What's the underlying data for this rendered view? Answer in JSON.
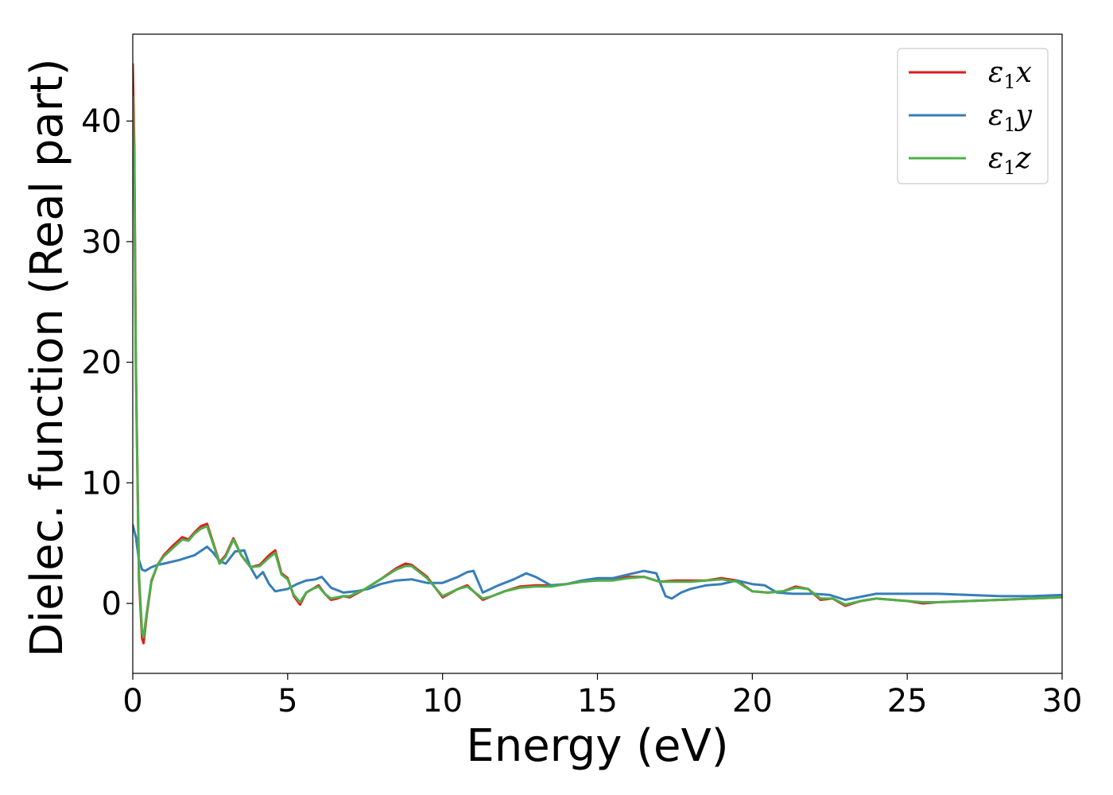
{
  "chart_data": {
    "type": "line",
    "title": "",
    "xlabel": "Energy (eV)",
    "ylabel": "Dielec. function (Real part)",
    "xlim": [
      0,
      30
    ],
    "ylim": [
      -5.8,
      47.2
    ],
    "xticks": [
      0,
      5,
      10,
      15,
      20,
      25,
      30
    ],
    "yticks": [
      0,
      10,
      20,
      30,
      40
    ],
    "grid": false,
    "legend_position": "top-right",
    "series": [
      {
        "name": "ε1x",
        "name_base": "ε",
        "name_sub": "1",
        "name_var": "x",
        "color": "#e41a1c",
        "x": [
          0,
          0.05,
          0.1,
          0.2,
          0.3,
          0.35,
          0.45,
          0.6,
          0.8,
          1.0,
          1.3,
          1.6,
          1.8,
          2.0,
          2.2,
          2.4,
          2.6,
          2.8,
          3.0,
          3.25,
          3.5,
          3.8,
          4.1,
          4.4,
          4.6,
          4.8,
          5.0,
          5.2,
          5.4,
          5.6,
          5.8,
          6.0,
          6.2,
          6.4,
          6.6,
          6.8,
          7.0,
          7.5,
          8.0,
          8.5,
          8.8,
          9.0,
          9.5,
          10.0,
          10.5,
          10.8,
          11.0,
          11.3,
          11.6,
          12.0,
          12.5,
          13.0,
          13.5,
          14.0,
          14.5,
          15.0,
          15.5,
          16.0,
          16.5,
          17.0,
          17.5,
          18.0,
          18.5,
          19.0,
          19.5,
          20.0,
          20.5,
          21.0,
          21.4,
          21.8,
          22.2,
          22.6,
          23.0,
          23.5,
          24.0,
          25.0,
          25.5,
          26.0,
          27.0,
          28.0,
          29.0,
          30.0
        ],
        "y": [
          44.7,
          38.0,
          20.0,
          2.0,
          -2.9,
          -3.3,
          -1.0,
          1.8,
          3.2,
          4.0,
          4.8,
          5.5,
          5.3,
          5.9,
          6.4,
          6.6,
          5.0,
          3.4,
          4.0,
          5.4,
          4.0,
          3.0,
          3.2,
          4.0,
          4.4,
          2.5,
          2.1,
          0.6,
          -0.1,
          0.9,
          1.2,
          1.5,
          0.8,
          0.3,
          0.4,
          0.6,
          0.5,
          1.2,
          2.0,
          2.9,
          3.3,
          3.2,
          2.2,
          0.5,
          1.2,
          1.5,
          1.0,
          0.3,
          0.6,
          1.0,
          1.4,
          1.5,
          1.5,
          1.6,
          1.8,
          2.0,
          2.0,
          2.2,
          2.2,
          1.8,
          1.9,
          1.9,
          1.9,
          2.1,
          1.9,
          1.0,
          0.9,
          1.0,
          1.4,
          1.2,
          0.3,
          0.4,
          -0.2,
          0.2,
          0.4,
          0.2,
          0.0,
          0.1,
          0.2,
          0.3,
          0.4,
          0.5
        ]
      },
      {
        "name": "ε1y",
        "name_base": "ε",
        "name_sub": "1",
        "name_var": "y",
        "color": "#377eb8",
        "x": [
          0,
          0.1,
          0.2,
          0.3,
          0.4,
          0.6,
          0.8,
          1.0,
          1.5,
          2.0,
          2.4,
          2.6,
          2.8,
          3.0,
          3.3,
          3.6,
          3.8,
          4.0,
          4.2,
          4.4,
          4.6,
          5.0,
          5.3,
          5.6,
          5.9,
          6.1,
          6.4,
          6.8,
          7.2,
          7.6,
          8.0,
          8.5,
          9.0,
          9.5,
          10.0,
          10.5,
          10.8,
          11.0,
          11.3,
          11.8,
          12.3,
          12.7,
          13.0,
          13.5,
          14.0,
          14.5,
          15.0,
          15.5,
          16.0,
          16.5,
          16.9,
          17.2,
          17.4,
          17.7,
          18.0,
          18.5,
          19.0,
          19.5,
          20.0,
          20.4,
          20.8,
          21.3,
          22.0,
          22.5,
          23.0,
          24.0,
          25.0,
          26.0,
          27.0,
          28.0,
          29.0,
          30.0
        ],
        "y": [
          6.5,
          5.5,
          3.6,
          2.8,
          2.7,
          3.0,
          3.2,
          3.3,
          3.6,
          4.0,
          4.7,
          4.2,
          3.5,
          3.3,
          4.3,
          4.4,
          3.0,
          2.1,
          2.6,
          1.6,
          1.0,
          1.2,
          1.6,
          1.9,
          2.0,
          2.2,
          1.3,
          0.9,
          1.0,
          1.2,
          1.6,
          1.9,
          2.0,
          1.7,
          1.7,
          2.2,
          2.6,
          2.7,
          0.9,
          1.5,
          2.0,
          2.5,
          2.2,
          1.5,
          1.6,
          1.9,
          2.1,
          2.1,
          2.4,
          2.7,
          2.5,
          0.6,
          0.4,
          0.9,
          1.2,
          1.5,
          1.6,
          1.9,
          1.6,
          1.5,
          0.9,
          0.8,
          0.8,
          0.7,
          0.3,
          0.8,
          0.8,
          0.8,
          0.7,
          0.6,
          0.6,
          0.7
        ]
      },
      {
        "name": "ε1z",
        "name_base": "ε",
        "name_sub": "1",
        "name_var": "z",
        "color": "#4daf4a",
        "x": [
          0,
          0.05,
          0.1,
          0.2,
          0.3,
          0.35,
          0.45,
          0.6,
          0.8,
          1.0,
          1.3,
          1.6,
          1.8,
          2.0,
          2.2,
          2.4,
          2.6,
          2.8,
          3.0,
          3.25,
          3.5,
          3.8,
          4.1,
          4.4,
          4.6,
          4.8,
          5.0,
          5.2,
          5.4,
          5.6,
          5.8,
          6.0,
          6.2,
          6.4,
          6.6,
          6.8,
          7.0,
          7.5,
          8.0,
          8.5,
          8.8,
          9.0,
          9.5,
          10.0,
          10.5,
          10.8,
          11.0,
          11.3,
          11.6,
          12.0,
          12.5,
          13.0,
          13.5,
          14.0,
          14.5,
          15.0,
          15.5,
          16.0,
          16.5,
          17.0,
          17.5,
          18.0,
          18.5,
          19.0,
          19.5,
          20.0,
          20.5,
          21.0,
          21.4,
          21.8,
          22.2,
          22.6,
          23.0,
          23.5,
          24.0,
          25.0,
          25.5,
          26.0,
          27.0,
          28.0,
          29.0,
          30.0
        ],
        "y": [
          42.0,
          36.0,
          19.0,
          2.5,
          -2.4,
          -2.8,
          -0.8,
          1.9,
          3.2,
          3.9,
          4.6,
          5.3,
          5.2,
          5.8,
          6.2,
          6.4,
          4.9,
          3.3,
          3.9,
          5.3,
          4.0,
          3.0,
          3.1,
          3.8,
          4.2,
          2.4,
          2.0,
          0.7,
          0.1,
          0.9,
          1.2,
          1.4,
          0.8,
          0.4,
          0.5,
          0.6,
          0.6,
          1.2,
          2.0,
          2.8,
          3.1,
          3.1,
          2.1,
          0.6,
          1.2,
          1.4,
          1.0,
          0.4,
          0.6,
          1.0,
          1.3,
          1.4,
          1.4,
          1.6,
          1.8,
          1.9,
          1.9,
          2.1,
          2.2,
          1.8,
          1.8,
          1.8,
          1.9,
          2.0,
          1.8,
          1.0,
          0.9,
          1.0,
          1.3,
          1.2,
          0.4,
          0.4,
          -0.1,
          0.2,
          0.4,
          0.2,
          0.1,
          0.1,
          0.2,
          0.3,
          0.4,
          0.5
        ]
      }
    ]
  }
}
